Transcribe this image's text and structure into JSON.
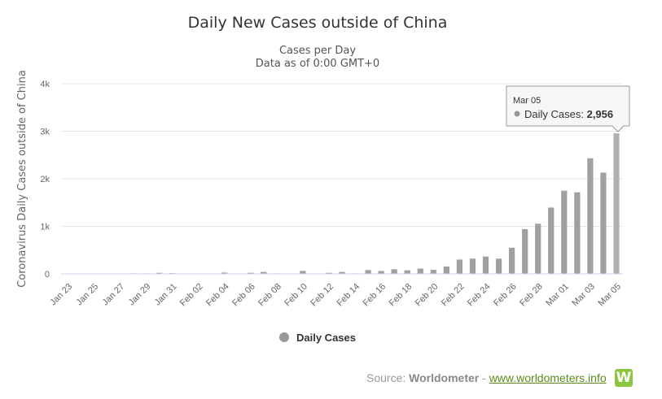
{
  "chart_data": {
    "type": "bar",
    "title": "Daily New Cases outside of China",
    "subtitle": "Cases per Day",
    "subtitle2": "Data as of 0:00 GMT+0",
    "ylabel": "Coronavirus Daily Cases outside of China",
    "xlabel": "",
    "ylim": [
      0,
      4000
    ],
    "yticks": [
      "0",
      "1k",
      "2k",
      "3k",
      "4k"
    ],
    "ytick_values": [
      0,
      1000,
      2000,
      3000,
      4000
    ],
    "grid": true,
    "legend": "bottom-center",
    "bar_color": "#a0a0a0",
    "last_bar_color": "#b0b0b0",
    "categories": [
      "Jan 23",
      "Jan 24",
      "Jan 25",
      "Jan 26",
      "Jan 27",
      "Jan 28",
      "Jan 29",
      "Jan 30",
      "Jan 31",
      "Feb 01",
      "Feb 02",
      "Feb 03",
      "Feb 04",
      "Feb 05",
      "Feb 06",
      "Feb 07",
      "Feb 08",
      "Feb 09",
      "Feb 10",
      "Feb 11",
      "Feb 12",
      "Feb 13",
      "Feb 14",
      "Feb 15",
      "Feb 16",
      "Feb 17",
      "Feb 18",
      "Feb 19",
      "Feb 20",
      "Feb 21",
      "Feb 22",
      "Feb 23",
      "Feb 24",
      "Feb 25",
      "Feb 26",
      "Feb 27",
      "Feb 28",
      "Feb 29",
      "Mar 01",
      "Mar 02",
      "Mar 03",
      "Mar 04",
      "Mar 05"
    ],
    "tick_labels": [
      "Jan 23",
      "Jan 25",
      "Jan 27",
      "Jan 29",
      "Jan 31",
      "Feb 02",
      "Feb 04",
      "Feb 06",
      "Feb 08",
      "Feb 10",
      "Feb 12",
      "Feb 14",
      "Feb 16",
      "Feb 18",
      "Feb 20",
      "Feb 22",
      "Feb 24",
      "Feb 26",
      "Feb 28",
      "Mar 01",
      "Mar 03",
      "Mar 05"
    ],
    "series": [
      {
        "name": "Daily Cases",
        "values": [
          2,
          5,
          3,
          8,
          7,
          11,
          10,
          22,
          15,
          6,
          8,
          4,
          27,
          3,
          23,
          40,
          10,
          6,
          62,
          5,
          22,
          40,
          10,
          80,
          60,
          97,
          75,
          110,
          85,
          155,
          300,
          320,
          365,
          320,
          550,
          940,
          1055,
          1395,
          1750,
          1715,
          2430,
          2130,
          2956
        ]
      }
    ],
    "tooltip": {
      "date": "Mar 05",
      "series": "Daily Cases",
      "value": "2,956"
    }
  },
  "source": {
    "prefix": "Source: ",
    "name": "Worldometer",
    "sep": " - ",
    "link": "www.worldometers.info",
    "logo": "W"
  }
}
